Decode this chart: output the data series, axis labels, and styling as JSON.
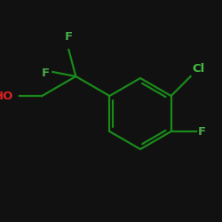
{
  "background_color": "#111111",
  "bond_color": "#1a8a1a",
  "atom_colors": {
    "F": "#4aaa4a",
    "Cl": "#44bb44",
    "HO": "#dd2222"
  },
  "figsize": [
    2.5,
    2.5
  ],
  "dpi": 100
}
